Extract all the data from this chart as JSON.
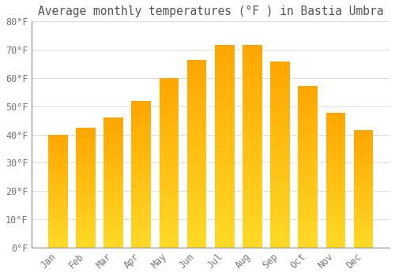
{
  "title": "Average monthly temperatures (°F ) in Bastia Umbra",
  "months": [
    "Jan",
    "Feb",
    "Mar",
    "Apr",
    "May",
    "Jun",
    "Jul",
    "Aug",
    "Sep",
    "Oct",
    "Nov",
    "Dec"
  ],
  "values": [
    39.9,
    42.3,
    46.0,
    51.8,
    60.1,
    66.4,
    71.8,
    71.6,
    65.8,
    57.2,
    47.8,
    41.5
  ],
  "bar_color": "#FFA500",
  "bar_edge_color": "#FF8C00",
  "background_color": "#FFFFFF",
  "plot_bg_color": "#FFFFFF",
  "grid_color": "#DDDDDD",
  "axis_color": "#888888",
  "title_color": "#555555",
  "label_color": "#777777",
  "ylim": [
    0,
    80
  ],
  "yticks": [
    0,
    10,
    20,
    30,
    40,
    50,
    60,
    70,
    80
  ],
  "ytick_labels": [
    "0°F",
    "10°F",
    "20°F",
    "30°F",
    "40°F",
    "50°F",
    "60°F",
    "70°F",
    "80°F"
  ],
  "title_fontsize": 10.5,
  "tick_fontsize": 8.5,
  "font_family": "monospace",
  "bar_width": 0.7
}
